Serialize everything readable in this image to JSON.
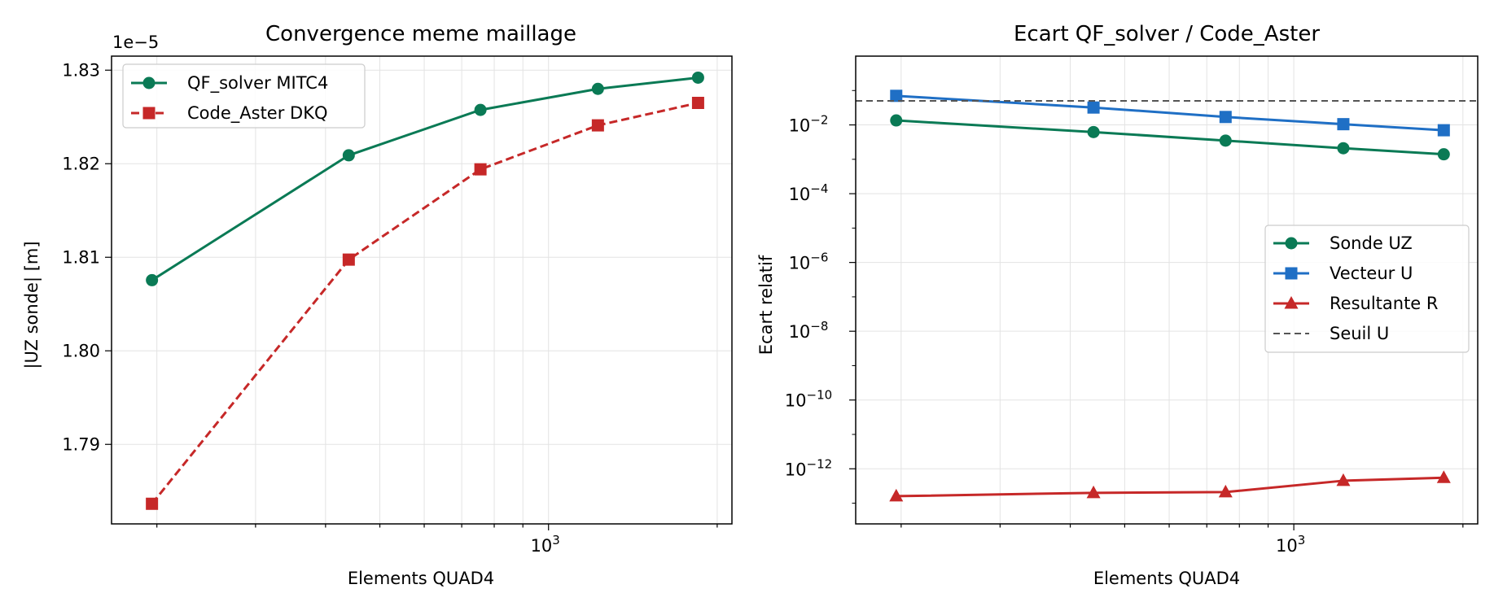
{
  "chart_data": [
    {
      "type": "line",
      "title": "Convergence meme maillage",
      "xlabel": "Elements QUAD4",
      "ylabel": "|UZ sonde| [m]",
      "offset_text": "1e−5",
      "x_scale": "log",
      "xlim": [
        166,
        2125
      ],
      "ylim": [
        1.7815,
        1.8315
      ],
      "y_exponent": -5,
      "y_ticks": [
        1.79,
        1.8,
        1.81,
        1.82,
        1.83
      ],
      "y_tick_labels": [
        "1.79",
        "1.80",
        "1.81",
        "1.82",
        "1.83"
      ],
      "x_tick_label": "10",
      "x_tick_exponent": "3",
      "grid": true,
      "legend": "upper-left",
      "series": [
        {
          "name": "QF_solver MITC4",
          "color": "#0a7a55",
          "marker": "circle",
          "linestyle": "solid",
          "x": [
            196,
            440,
            756,
            1225,
            1849
          ],
          "y": [
            1.80755,
            1.8209,
            1.82575,
            1.828,
            1.8292
          ]
        },
        {
          "name": "Code_Aster DKQ",
          "color": "#c62828",
          "marker": "square",
          "linestyle": "dashed",
          "x": [
            196,
            440,
            756,
            1225,
            1849
          ],
          "y": [
            1.78365,
            1.80975,
            1.8194,
            1.8241,
            1.8265
          ]
        }
      ]
    },
    {
      "type": "line",
      "title": "Ecart QF_solver / Code_Aster",
      "xlabel": "Elements QUAD4",
      "ylabel": "Ecart relatif",
      "x_scale": "log",
      "y_scale": "log",
      "xlim": [
        166,
        2125
      ],
      "ylim": [
        2.5e-14,
        1.0
      ],
      "y_tick_exponents": [
        "−12",
        "−10",
        "−8",
        "−6",
        "−4",
        "−2"
      ],
      "y_tick_base": "10",
      "x_tick_label": "10",
      "x_tick_exponent": "3",
      "grid": true,
      "legend": "center-right",
      "series": [
        {
          "name": "Sonde UZ",
          "color": "#0a7a55",
          "marker": "circle",
          "linestyle": "solid",
          "x": [
            196,
            440,
            756,
            1225,
            1849
          ],
          "y": [
            0.0135,
            0.0062,
            0.0035,
            0.0021,
            0.0014
          ]
        },
        {
          "name": "Vecteur U",
          "color": "#1f6fc5",
          "marker": "square",
          "linestyle": "solid",
          "x": [
            196,
            440,
            756,
            1225,
            1849
          ],
          "y": [
            0.07,
            0.032,
            0.017,
            0.0105,
            0.007
          ]
        },
        {
          "name": "Resultante R",
          "color": "#c62828",
          "marker": "triangle",
          "linestyle": "solid",
          "x": [
            196,
            440,
            756,
            1225,
            1849
          ],
          "y": [
            1.6e-13,
            2e-13,
            2.1e-13,
            4.5e-13,
            5.5e-13
          ]
        },
        {
          "name": "Seuil U",
          "color": "#555555",
          "linestyle": "dashed",
          "hline": 0.05
        }
      ]
    }
  ]
}
